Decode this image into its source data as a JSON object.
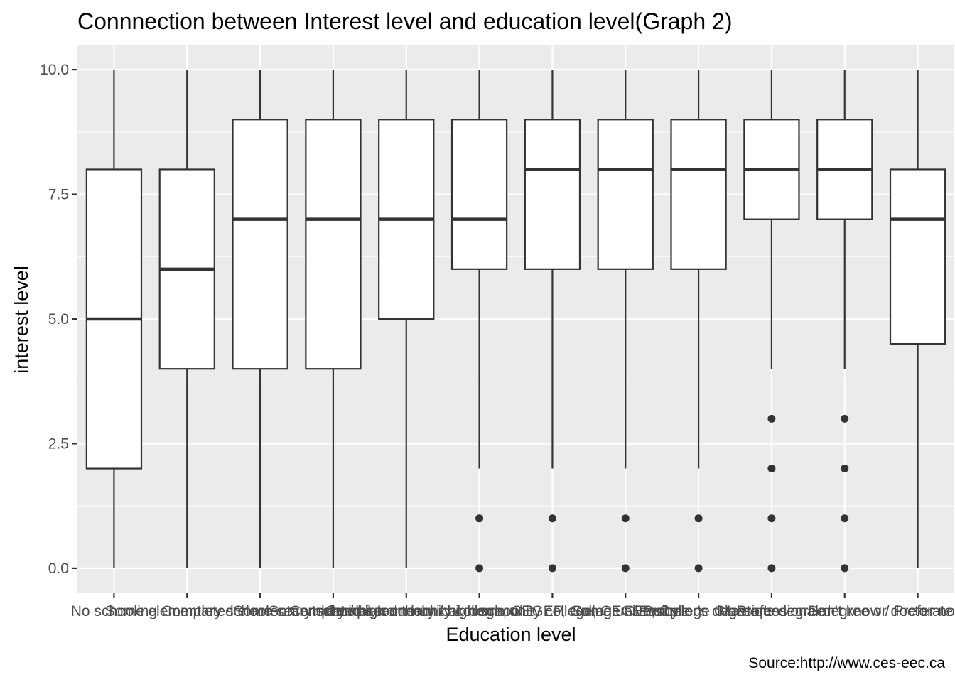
{
  "chart_data": {
    "type": "boxplot",
    "title": "Connnection between Interest level and education level(Graph 2)",
    "xlabel": "Education level",
    "ylabel": "interest level",
    "caption": "Source:http://www.ces-eec.ca",
    "ylim": [
      -0.5,
      10.5
    ],
    "yticks": [
      0.0,
      2.5,
      5.0,
      7.5,
      10.0
    ],
    "ytick_labels": [
      "0.0",
      "2.5",
      "5.0",
      "7.5",
      "10.0"
    ],
    "grid": true,
    "categories": [
      "No schooling",
      "Some elementary school",
      "Completed elementary school",
      "Some secondary / high school",
      "Completed secondary / high school",
      "Some technical, community college, CEGEP, College Classique",
      "Completed technical, community college, CEGEP, College Classique",
      "Some university",
      "Bachelor's degree",
      "Master's degree",
      "Professional degree or doctorate",
      "Don't know / Prefer not to answer"
    ],
    "boxes": [
      {
        "whisker_low": 0,
        "q1": 2,
        "median": 5,
        "q3": 8,
        "whisker_high": 10,
        "outliers": []
      },
      {
        "whisker_low": 0,
        "q1": 4,
        "median": 6,
        "q3": 8,
        "whisker_high": 10,
        "outliers": []
      },
      {
        "whisker_low": 0,
        "q1": 4,
        "median": 7,
        "q3": 9,
        "whisker_high": 10,
        "outliers": []
      },
      {
        "whisker_low": 0,
        "q1": 4,
        "median": 7,
        "q3": 9,
        "whisker_high": 10,
        "outliers": []
      },
      {
        "whisker_low": 0,
        "q1": 5,
        "median": 7,
        "q3": 9,
        "whisker_high": 10,
        "outliers": []
      },
      {
        "whisker_low": 2,
        "q1": 6,
        "median": 7,
        "q3": 9,
        "whisker_high": 10,
        "outliers": [
          0,
          1
        ]
      },
      {
        "whisker_low": 2,
        "q1": 6,
        "median": 8,
        "q3": 9,
        "whisker_high": 10,
        "outliers": [
          0,
          1
        ]
      },
      {
        "whisker_low": 2,
        "q1": 6,
        "median": 8,
        "q3": 9,
        "whisker_high": 10,
        "outliers": [
          0,
          1
        ]
      },
      {
        "whisker_low": 2,
        "q1": 6,
        "median": 8,
        "q3": 9,
        "whisker_high": 10,
        "outliers": [
          0,
          1
        ]
      },
      {
        "whisker_low": 4,
        "q1": 7,
        "median": 8,
        "q3": 9,
        "whisker_high": 10,
        "outliers": [
          0,
          1,
          2,
          3
        ]
      },
      {
        "whisker_low": 4,
        "q1": 7,
        "median": 8,
        "q3": 9,
        "whisker_high": 10,
        "outliers": [
          0,
          1,
          2,
          3
        ]
      },
      {
        "whisker_low": 0,
        "q1": 4.5,
        "median": 7,
        "q3": 8,
        "whisker_high": 10,
        "outliers": []
      }
    ],
    "colors": {
      "panel_background": "#ebebeb",
      "grid_major": "#ffffff",
      "box_fill": "#ffffff",
      "box_stroke": "#333333",
      "tick_text": "#4d4d4d"
    }
  }
}
